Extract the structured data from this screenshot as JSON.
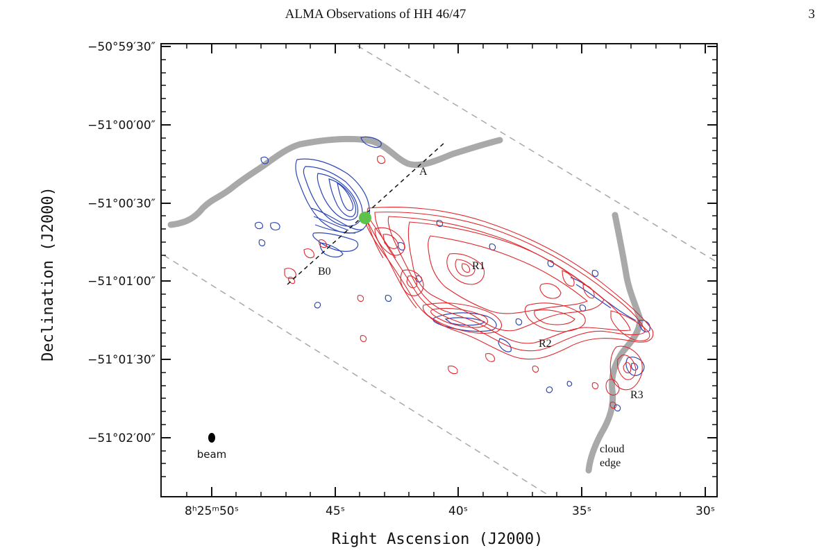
{
  "header": {
    "running_title": "ALMA Observations of HH 46/47",
    "page_number": "3"
  },
  "figure": {
    "xlabel": "Right Ascension (J2000)",
    "ylabel": "Declination (J2000)",
    "y_ticks": [
      "−50°59′30″",
      "−51°00′00″",
      "−51°00′30″",
      "−51°01′00″",
      "−51°01′30″",
      "−51°02′00″"
    ],
    "x_ticks": [
      "8ʰ25ᵐ50ˢ",
      "45ˢ",
      "40ˢ",
      "35ˢ",
      "30ˢ"
    ],
    "labels": {
      "A": "A",
      "B0": "B0",
      "R1": "R1",
      "R2": "R2",
      "R3": "R3",
      "beam": "beam",
      "cloud": "cloud",
      "edge": "edge"
    },
    "colors": {
      "blueshifted": "#2a45b8",
      "redshifted": "#e0262b",
      "cloud_edge": "#a9a9a9",
      "source_marker": "#5cc24a",
      "dashed_lines": "#a0a0a0"
    }
  }
}
